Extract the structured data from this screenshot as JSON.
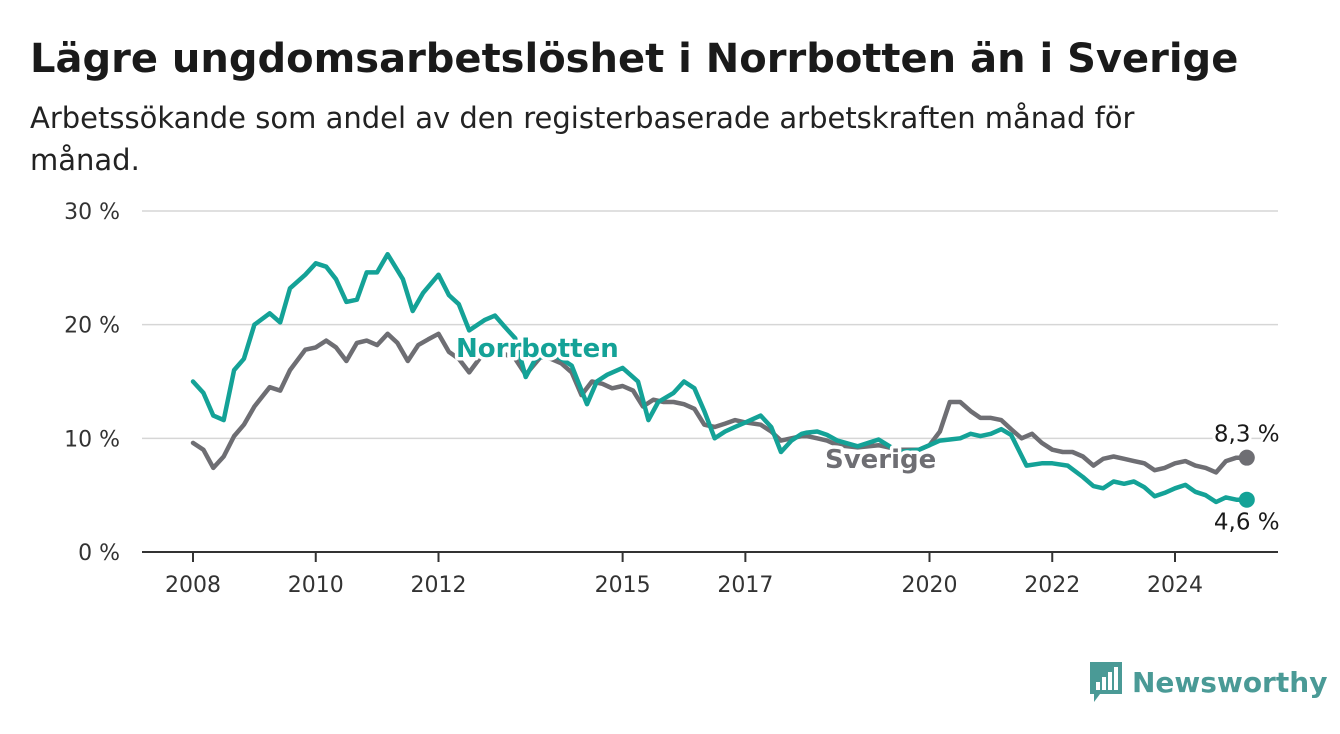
{
  "title": "Lägre ungdomsarbetslöshet i Norrbotten än i Sverige",
  "subtitle": "Arbetssökande som andel av den registerbaserade arbetskraften månad för månad.",
  "brand": {
    "name": "Newsworthy",
    "icon": "newsworthy-chart-logo-icon",
    "color": "#4a9a96"
  },
  "chart_data": {
    "type": "line",
    "y_ticks": [
      "0 %",
      "10 %",
      "20 %",
      "30 %"
    ],
    "ylim": [
      0,
      30
    ],
    "x_ticks": [
      "2008",
      "2010",
      "2012",
      "2015",
      "2017",
      "2020",
      "2022",
      "2024"
    ],
    "xlim": [
      2007.8,
      2025.6
    ],
    "grid": true,
    "series": [
      {
        "name": "Norrbotten",
        "color": "#14a297",
        "end_label": "4,6 %",
        "points": [
          [
            2008.0,
            15.0
          ],
          [
            2008.17,
            14.0
          ],
          [
            2008.33,
            12.0
          ],
          [
            2008.5,
            11.6
          ],
          [
            2008.67,
            16.0
          ],
          [
            2008.83,
            17.0
          ],
          [
            2009.0,
            20.0
          ],
          [
            2009.25,
            21.0
          ],
          [
            2009.42,
            20.2
          ],
          [
            2009.58,
            23.2
          ],
          [
            2009.83,
            24.4
          ],
          [
            2010.0,
            25.4
          ],
          [
            2010.17,
            25.1
          ],
          [
            2010.33,
            24.0
          ],
          [
            2010.5,
            22.0
          ],
          [
            2010.67,
            22.2
          ],
          [
            2010.83,
            24.6
          ],
          [
            2011.0,
            24.6
          ],
          [
            2011.17,
            26.2
          ],
          [
            2011.42,
            24.0
          ],
          [
            2011.58,
            21.2
          ],
          [
            2011.75,
            22.8
          ],
          [
            2012.0,
            24.4
          ],
          [
            2012.17,
            22.6
          ],
          [
            2012.33,
            21.8
          ],
          [
            2012.5,
            19.5
          ],
          [
            2012.75,
            20.4
          ],
          [
            2012.92,
            20.8
          ],
          [
            2013.08,
            19.8
          ],
          [
            2013.25,
            18.8
          ],
          [
            2013.42,
            15.4
          ],
          [
            2013.58,
            17.0
          ],
          [
            2013.83,
            17.4
          ],
          [
            2014.0,
            17.0
          ],
          [
            2014.17,
            16.4
          ],
          [
            2014.42,
            13.0
          ],
          [
            2014.58,
            15.0
          ],
          [
            2014.75,
            15.6
          ],
          [
            2015.0,
            16.2
          ],
          [
            2015.25,
            15.0
          ],
          [
            2015.42,
            11.6
          ],
          [
            2015.58,
            13.2
          ],
          [
            2015.83,
            14.0
          ],
          [
            2016.0,
            15.0
          ],
          [
            2016.17,
            14.4
          ],
          [
            2016.33,
            12.4
          ],
          [
            2016.5,
            10.0
          ],
          [
            2016.67,
            10.6
          ],
          [
            2016.83,
            11.0
          ],
          [
            2017.0,
            11.4
          ],
          [
            2017.25,
            12.0
          ],
          [
            2017.42,
            11.0
          ],
          [
            2017.58,
            8.8
          ],
          [
            2017.75,
            9.8
          ],
          [
            2017.92,
            10.4
          ],
          [
            2018.0,
            10.5
          ],
          [
            2018.17,
            10.6
          ],
          [
            2018.33,
            10.3
          ],
          [
            2018.5,
            9.8
          ],
          [
            2018.83,
            9.3
          ],
          [
            2019.17,
            9.9
          ],
          [
            2019.5,
            8.8
          ],
          [
            2019.83,
            9.0
          ],
          [
            2020.0,
            9.4
          ],
          [
            2020.17,
            9.8
          ],
          [
            2020.33,
            9.9
          ],
          [
            2020.5,
            10.0
          ],
          [
            2020.67,
            10.4
          ],
          [
            2020.83,
            10.2
          ],
          [
            2021.0,
            10.4
          ],
          [
            2021.17,
            10.8
          ],
          [
            2021.33,
            10.3
          ],
          [
            2021.58,
            7.6
          ],
          [
            2021.83,
            7.8
          ],
          [
            2022.0,
            7.8
          ],
          [
            2022.25,
            7.6
          ],
          [
            2022.5,
            6.6
          ],
          [
            2022.67,
            5.8
          ],
          [
            2022.83,
            5.6
          ],
          [
            2023.0,
            6.2
          ],
          [
            2023.17,
            6.0
          ],
          [
            2023.33,
            6.2
          ],
          [
            2023.5,
            5.7
          ],
          [
            2023.67,
            4.9
          ],
          [
            2023.83,
            5.2
          ],
          [
            2024.0,
            5.6
          ],
          [
            2024.17,
            5.9
          ],
          [
            2024.33,
            5.3
          ],
          [
            2024.5,
            5.0
          ],
          [
            2024.67,
            4.4
          ],
          [
            2024.83,
            4.8
          ],
          [
            2025.0,
            4.6
          ],
          [
            2025.17,
            4.6
          ]
        ]
      },
      {
        "name": "Sverige",
        "color": "#6e6e73",
        "end_label": "8,3 %",
        "points": [
          [
            2008.0,
            9.6
          ],
          [
            2008.17,
            9.0
          ],
          [
            2008.33,
            7.4
          ],
          [
            2008.5,
            8.4
          ],
          [
            2008.67,
            10.2
          ],
          [
            2008.83,
            11.2
          ],
          [
            2009.0,
            12.8
          ],
          [
            2009.25,
            14.5
          ],
          [
            2009.42,
            14.2
          ],
          [
            2009.58,
            16.0
          ],
          [
            2009.83,
            17.8
          ],
          [
            2010.0,
            18.0
          ],
          [
            2010.17,
            18.6
          ],
          [
            2010.33,
            18.0
          ],
          [
            2010.5,
            16.8
          ],
          [
            2010.67,
            18.4
          ],
          [
            2010.83,
            18.6
          ],
          [
            2011.0,
            18.2
          ],
          [
            2011.17,
            19.2
          ],
          [
            2011.33,
            18.4
          ],
          [
            2011.5,
            16.8
          ],
          [
            2011.67,
            18.2
          ],
          [
            2011.83,
            18.7
          ],
          [
            2012.0,
            19.2
          ],
          [
            2012.17,
            17.6
          ],
          [
            2012.33,
            17.0
          ],
          [
            2012.5,
            15.8
          ],
          [
            2012.75,
            17.6
          ],
          [
            2013.0,
            17.6
          ],
          [
            2013.25,
            17.0
          ],
          [
            2013.42,
            15.6
          ],
          [
            2013.67,
            17.2
          ],
          [
            2013.83,
            17.0
          ],
          [
            2014.0,
            16.6
          ],
          [
            2014.17,
            15.8
          ],
          [
            2014.33,
            13.8
          ],
          [
            2014.5,
            15.0
          ],
          [
            2014.67,
            14.8
          ],
          [
            2014.83,
            14.4
          ],
          [
            2015.0,
            14.6
          ],
          [
            2015.17,
            14.2
          ],
          [
            2015.33,
            12.8
          ],
          [
            2015.5,
            13.4
          ],
          [
            2015.67,
            13.2
          ],
          [
            2015.83,
            13.2
          ],
          [
            2016.0,
            13.0
          ],
          [
            2016.17,
            12.6
          ],
          [
            2016.33,
            11.2
          ],
          [
            2016.5,
            11.0
          ],
          [
            2016.67,
            11.3
          ],
          [
            2016.83,
            11.6
          ],
          [
            2017.0,
            11.4
          ],
          [
            2017.25,
            11.2
          ],
          [
            2017.42,
            10.6
          ],
          [
            2017.58,
            9.8
          ],
          [
            2017.75,
            10.0
          ],
          [
            2017.92,
            10.2
          ],
          [
            2018.0,
            10.2
          ],
          [
            2018.17,
            10.0
          ],
          [
            2018.33,
            9.8
          ],
          [
            2018.5,
            9.4
          ],
          [
            2018.83,
            9.2
          ],
          [
            2019.17,
            9.4
          ],
          [
            2019.5,
            9.0
          ],
          [
            2019.83,
            9.0
          ],
          [
            2020.0,
            9.4
          ],
          [
            2020.17,
            10.6
          ],
          [
            2020.33,
            13.2
          ],
          [
            2020.5,
            13.2
          ],
          [
            2020.67,
            12.4
          ],
          [
            2020.83,
            11.8
          ],
          [
            2021.0,
            11.8
          ],
          [
            2021.17,
            11.6
          ],
          [
            2021.33,
            10.8
          ],
          [
            2021.5,
            10.0
          ],
          [
            2021.67,
            10.4
          ],
          [
            2021.83,
            9.6
          ],
          [
            2022.0,
            9.0
          ],
          [
            2022.17,
            8.8
          ],
          [
            2022.33,
            8.8
          ],
          [
            2022.5,
            8.4
          ],
          [
            2022.67,
            7.6
          ],
          [
            2022.83,
            8.2
          ],
          [
            2023.0,
            8.4
          ],
          [
            2023.17,
            8.2
          ],
          [
            2023.33,
            8.0
          ],
          [
            2023.5,
            7.8
          ],
          [
            2023.67,
            7.2
          ],
          [
            2023.83,
            7.4
          ],
          [
            2024.0,
            7.8
          ],
          [
            2024.17,
            8.0
          ],
          [
            2024.33,
            7.6
          ],
          [
            2024.5,
            7.4
          ],
          [
            2024.67,
            7.0
          ],
          [
            2024.83,
            8.0
          ],
          [
            2025.0,
            8.3
          ],
          [
            2025.17,
            8.3
          ]
        ]
      }
    ]
  }
}
